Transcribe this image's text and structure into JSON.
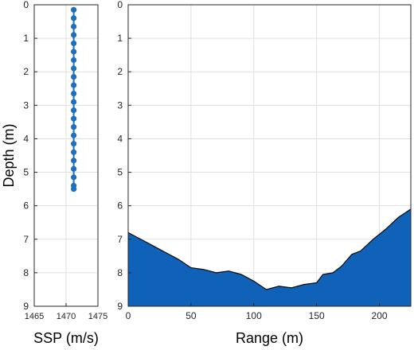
{
  "chart_data": [
    {
      "type": "scatter",
      "xlabel": "SSP (m/s)",
      "ylabel": "Depth (m)",
      "xlim": [
        1465,
        1475
      ],
      "ylim": [
        0,
        9
      ],
      "y_reversed": true,
      "xticks": [
        "1465",
        "1470",
        "1475"
      ],
      "yticks": [
        "0",
        "1",
        "2",
        "3",
        "4",
        "5",
        "6",
        "7",
        "8",
        "9"
      ],
      "grid": true,
      "color": "#1f6fbf",
      "series": [
        {
          "x": [
            1471.2,
            1471.2,
            1471.2,
            1471.2,
            1471.2,
            1471.2,
            1471.2,
            1471.2,
            1471.2,
            1471.2,
            1471.2,
            1471.2,
            1471.2,
            1471.2,
            1471.2,
            1471.2,
            1471.2,
            1471.2,
            1471.2,
            1471.2,
            1471.2,
            1471.2,
            1471.2
          ],
          "y": [
            0.15,
            0.4,
            0.65,
            0.9,
            1.15,
            1.4,
            1.65,
            1.9,
            2.15,
            2.4,
            2.65,
            2.9,
            3.15,
            3.4,
            3.65,
            3.9,
            4.15,
            4.4,
            4.65,
            4.9,
            5.15,
            5.4,
            5.5
          ]
        }
      ]
    },
    {
      "type": "area",
      "xlabel": "Range (m)",
      "ylabel": "",
      "xlim": [
        0,
        225
      ],
      "ylim": [
        0,
        9
      ],
      "y_reversed": true,
      "xticks": [
        "0",
        "50",
        "100",
        "150",
        "200"
      ],
      "yticks": [
        "0",
        "1",
        "2",
        "3",
        "4",
        "5",
        "6",
        "7",
        "8",
        "9"
      ],
      "grid": true,
      "color": "#0f62b8",
      "series": [
        {
          "x": [
            0,
            10,
            20,
            30,
            40,
            50,
            60,
            70,
            80,
            90,
            100,
            110,
            120,
            130,
            140,
            150,
            155,
            163,
            170,
            178,
            185,
            195,
            205,
            215,
            225
          ],
          "y": [
            6.8,
            7.0,
            7.2,
            7.4,
            7.6,
            7.85,
            7.9,
            8.0,
            7.95,
            8.05,
            8.25,
            8.5,
            8.4,
            8.45,
            8.35,
            8.3,
            8.05,
            8.0,
            7.8,
            7.45,
            7.35,
            7.0,
            6.7,
            6.35,
            6.1
          ]
        }
      ]
    }
  ]
}
